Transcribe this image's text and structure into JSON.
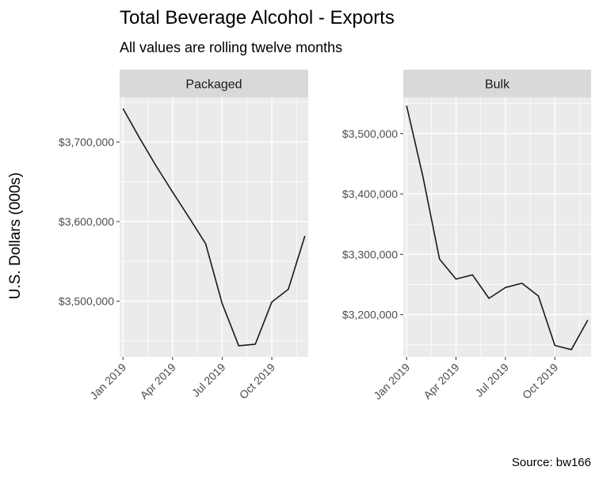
{
  "chart_data": {
    "type": "line",
    "title": "Total Beverage Alcohol - Exports",
    "subtitle": "All values are rolling twelve months",
    "ylabel": "U.S. Dollars (000s)",
    "xlabel": "",
    "caption": "Source: bw166",
    "x_tick_labels": [
      "Jan 2019",
      "Apr 2019",
      "Jul 2019",
      "Oct 2019"
    ],
    "x_tick_months": [
      0,
      3,
      6,
      9
    ],
    "x_range_months": [
      -0.2,
      11.2
    ],
    "grid": true,
    "legend": "none",
    "line_color": "#1a1a1a",
    "panel_bg": "#ebebeb",
    "strip_bg": "#d9d9d9",
    "grid_color": "#ffffff",
    "panels": [
      {
        "name": "Packaged",
        "x": [
          "2019-01",
          "2019-02",
          "2019-03",
          "2019-04",
          "2019-05",
          "2019-06",
          "2019-07",
          "2019-08",
          "2019-09",
          "2019-10",
          "2019-11",
          "2019-12"
        ],
        "values": [
          3742000,
          3705000,
          3670000,
          3637000,
          3605000,
          3572000,
          3497000,
          3444000,
          3446000,
          3499000,
          3515000,
          3582000
        ],
        "ylim": [
          3430000,
          3756000
        ],
        "y_ticks": [
          3500000,
          3600000,
          3700000
        ],
        "y_tick_labels": [
          "$3,500,000",
          "$3,600,000",
          "$3,700,000"
        ]
      },
      {
        "name": "Bulk",
        "x": [
          "2019-01",
          "2019-02",
          "2019-03",
          "2019-04",
          "2019-05",
          "2019-06",
          "2019-07",
          "2019-08",
          "2019-09",
          "2019-10",
          "2019-11",
          "2019-12"
        ],
        "values": [
          3546000,
          3428000,
          3292000,
          3259000,
          3266000,
          3227000,
          3245000,
          3252000,
          3231000,
          3149000,
          3142000,
          3191000
        ],
        "ylim": [
          3130000,
          3560000
        ],
        "y_ticks": [
          3200000,
          3300000,
          3400000,
          3500000
        ],
        "y_tick_labels": [
          "$3,200,000",
          "$3,300,000",
          "$3,400,000",
          "$3,500,000"
        ]
      }
    ]
  }
}
